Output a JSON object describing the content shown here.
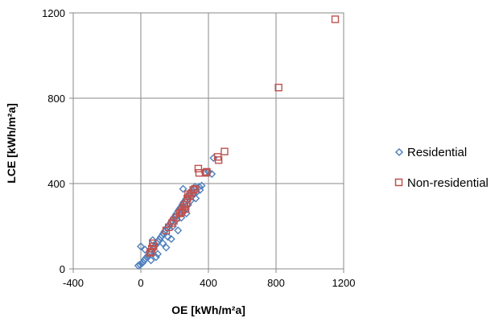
{
  "chart_data": {
    "type": "scatter",
    "title": "",
    "xlabel": "OE [kWh/m²a]",
    "ylabel": "LCE [kWh/m²a]",
    "xlim": [
      -400,
      1200
    ],
    "ylim": [
      0,
      1200
    ],
    "xticks": [
      "-400",
      "0",
      "400",
      "800",
      "1200"
    ],
    "yticks": [
      "0",
      "400",
      "800",
      "1200"
    ],
    "grid": true,
    "legend_position": "right",
    "series": [
      {
        "name": "Residential",
        "marker": "diamond",
        "color": "#4F81BD",
        "points": [
          [
            -15,
            15
          ],
          [
            -5,
            20
          ],
          [
            5,
            25
          ],
          [
            12,
            30
          ],
          [
            20,
            40
          ],
          [
            28,
            48
          ],
          [
            35,
            55
          ],
          [
            42,
            62
          ],
          [
            50,
            70
          ],
          [
            58,
            80
          ],
          [
            65,
            88
          ],
          [
            72,
            95
          ],
          [
            80,
            105
          ],
          [
            88,
            112
          ],
          [
            95,
            120
          ],
          [
            102,
            128
          ],
          [
            110,
            138
          ],
          [
            118,
            148
          ],
          [
            125,
            155
          ],
          [
            132,
            165
          ],
          [
            140,
            175
          ],
          [
            148,
            182
          ],
          [
            155,
            190
          ],
          [
            162,
            198
          ],
          [
            170,
            208
          ],
          [
            178,
            218
          ],
          [
            185,
            225
          ],
          [
            192,
            235
          ],
          [
            200,
            245
          ],
          [
            208,
            255
          ],
          [
            215,
            262
          ],
          [
            222,
            272
          ],
          [
            230,
            282
          ],
          [
            238,
            290
          ],
          [
            245,
            300
          ],
          [
            252,
            310
          ],
          [
            260,
            318
          ],
          [
            268,
            328
          ],
          [
            275,
            338
          ],
          [
            282,
            345
          ],
          [
            290,
            355
          ],
          [
            298,
            362
          ],
          [
            305,
            370
          ],
          [
            312,
            378
          ],
          [
            320,
            385
          ],
          [
            0,
            105
          ],
          [
            25,
            90
          ],
          [
            70,
            135
          ],
          [
            100,
            70
          ],
          [
            130,
            120
          ],
          [
            160,
            150
          ],
          [
            190,
            200
          ],
          [
            210,
            230
          ],
          [
            230,
            260
          ],
          [
            250,
            375
          ],
          [
            265,
            280
          ],
          [
            280,
            300
          ],
          [
            300,
            340
          ],
          [
            315,
            350
          ],
          [
            330,
            360
          ],
          [
            345,
            385
          ],
          [
            360,
            390
          ],
          [
            380,
            450
          ],
          [
            400,
            455
          ],
          [
            420,
            445
          ],
          [
            430,
            520
          ],
          [
            60,
            40
          ],
          [
            90,
            55
          ],
          [
            150,
            100
          ],
          [
            180,
            140
          ],
          [
            220,
            180
          ],
          [
            240,
            240
          ],
          [
            270,
            260
          ],
          [
            295,
            320
          ],
          [
            325,
            330
          ],
          [
            350,
            370
          ]
        ]
      },
      {
        "name": "Non-residential",
        "marker": "square",
        "color": "#C0504D",
        "points": [
          [
            1150,
            1170
          ],
          [
            815,
            850
          ],
          [
            495,
            550
          ],
          [
            455,
            525
          ],
          [
            460,
            510
          ],
          [
            340,
            470
          ],
          [
            345,
            450
          ],
          [
            385,
            450
          ],
          [
            390,
            455
          ],
          [
            320,
            375
          ],
          [
            310,
            370
          ],
          [
            300,
            355
          ],
          [
            290,
            340
          ],
          [
            275,
            330
          ],
          [
            270,
            310
          ],
          [
            260,
            300
          ],
          [
            255,
            290
          ],
          [
            245,
            275
          ],
          [
            230,
            260
          ],
          [
            210,
            240
          ],
          [
            195,
            225
          ],
          [
            185,
            215
          ],
          [
            165,
            195
          ],
          [
            150,
            180
          ],
          [
            70,
            120
          ],
          [
            75,
            105
          ],
          [
            65,
            95
          ],
          [
            60,
            80
          ],
          [
            55,
            75
          ],
          [
            280,
            350
          ],
          [
            265,
            280
          ],
          [
            240,
            265
          ]
        ]
      }
    ]
  }
}
